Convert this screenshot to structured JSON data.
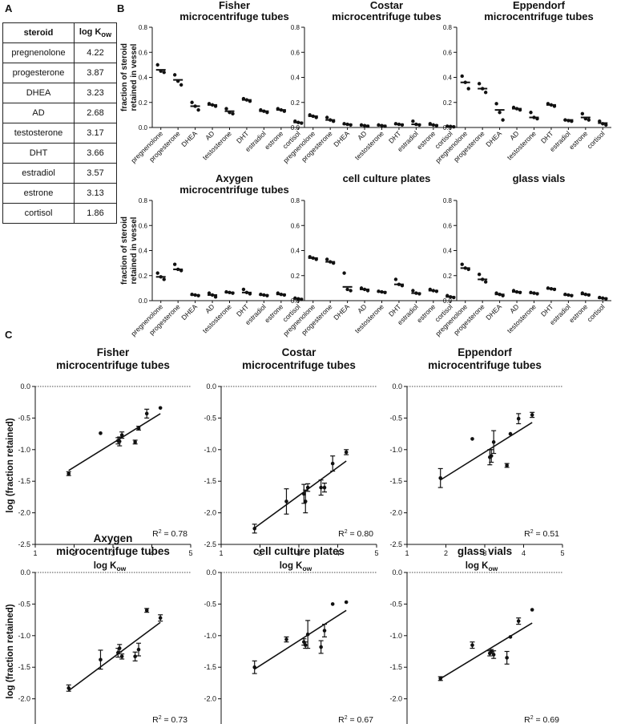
{
  "panels": {
    "a": "A",
    "b": "B",
    "c": "C"
  },
  "table": {
    "headers": [
      "steroid",
      "log K",
      "ow"
    ],
    "rows": [
      {
        "steroid": "pregnenolone",
        "logkow": "4.22"
      },
      {
        "steroid": "progesterone",
        "logkow": "3.87"
      },
      {
        "steroid": "DHEA",
        "logkow": "3.23"
      },
      {
        "steroid": "AD",
        "logkow": "2.68"
      },
      {
        "steroid": "testosterone",
        "logkow": "3.17"
      },
      {
        "steroid": "DHT",
        "logkow": "3.66"
      },
      {
        "steroid": "estradiol",
        "logkow": "3.57"
      },
      {
        "steroid": "estrone",
        "logkow": "3.13"
      },
      {
        "steroid": "cortisol",
        "logkow": "1.86"
      }
    ]
  },
  "chart_data": [
    {
      "panel": "B",
      "type": "scatter",
      "ylabel": [
        "fraction of steroid",
        "retained in vessel"
      ],
      "ylim": [
        0,
        0.8
      ],
      "yticks": [
        "0.0",
        "0.2",
        "0.4",
        "0.6",
        "0.8"
      ],
      "categories": [
        "pregnenolone",
        "progesterone",
        "DHEA",
        "AD",
        "testosterone",
        "DHT",
        "estradiol",
        "estrone",
        "cortisol"
      ],
      "subplots": [
        {
          "title": [
            "Fisher",
            "microcentrifuge tubes"
          ],
          "means": [
            0.46,
            0.38,
            0.17,
            0.18,
            0.13,
            0.22,
            0.13,
            0.14,
            0.04
          ],
          "points": [
            [
              0.5,
              0.45,
              0.44
            ],
            [
              0.42,
              0.37,
              0.34
            ],
            [
              0.2,
              0.17,
              0.14
            ],
            [
              0.19,
              0.18,
              0.17
            ],
            [
              0.15,
              0.12,
              0.11
            ],
            [
              0.23,
              0.22,
              0.21
            ],
            [
              0.14,
              0.13,
              0.12
            ],
            [
              0.15,
              0.14,
              0.13
            ],
            [
              0.05,
              0.04,
              0.035
            ]
          ]
        },
        {
          "title": [
            "Costar",
            "microcentrifuge tubes"
          ],
          "means": [
            0.09,
            0.06,
            0.025,
            0.015,
            0.015,
            0.025,
            0.025,
            0.02,
            0.008
          ],
          "points": [
            [
              0.1,
              0.09,
              0.08
            ],
            [
              0.08,
              0.06,
              0.05
            ],
            [
              0.03,
              0.025,
              0.02
            ],
            [
              0.02,
              0.015,
              0.01
            ],
            [
              0.02,
              0.015,
              0.01
            ],
            [
              0.03,
              0.025,
              0.02
            ],
            [
              0.05,
              0.025,
              0.02
            ],
            [
              0.03,
              0.02,
              0.015
            ],
            [
              0.01,
              0.008,
              0.005
            ]
          ]
        },
        {
          "title": [
            "Eppendorf",
            "microcentrifuge tubes"
          ],
          "means": [
            0.36,
            0.31,
            0.14,
            0.15,
            0.08,
            0.18,
            0.06,
            0.08,
            0.035
          ],
          "points": [
            [
              0.41,
              0.36,
              0.31
            ],
            [
              0.35,
              0.31,
              0.28
            ],
            [
              0.19,
              0.12,
              0.06
            ],
            [
              0.16,
              0.15,
              0.14
            ],
            [
              0.12,
              0.08,
              0.07
            ],
            [
              0.19,
              0.18,
              0.17
            ],
            [
              0.06,
              0.055,
              0.05
            ],
            [
              0.11,
              0.07,
              0.06
            ],
            [
              0.05,
              0.03,
              0.02
            ]
          ]
        },
        {
          "title": [
            "Axygen",
            "microcentrifuge tubes"
          ],
          "means": [
            0.19,
            0.25,
            0.045,
            0.045,
            0.065,
            0.065,
            0.045,
            0.05,
            0.015
          ],
          "points": [
            [
              0.22,
              0.19,
              0.17
            ],
            [
              0.29,
              0.25,
              0.24
            ],
            [
              0.05,
              0.045,
              0.04
            ],
            [
              0.06,
              0.045,
              0.03
            ],
            [
              0.07,
              0.065,
              0.06
            ],
            [
              0.09,
              0.065,
              0.055
            ],
            [
              0.05,
              0.045,
              0.04
            ],
            [
              0.06,
              0.05,
              0.045
            ],
            [
              0.02,
              0.015,
              0.01
            ]
          ]
        },
        {
          "title": [
            "cell culture plates"
          ],
          "means": [
            0.34,
            0.31,
            0.11,
            0.09,
            0.07,
            0.13,
            0.06,
            0.08,
            0.03
          ],
          "points": [
            [
              0.35,
              0.34,
              0.33
            ],
            [
              0.33,
              0.31,
              0.3
            ],
            [
              0.22,
              0.09,
              0.08
            ],
            [
              0.1,
              0.09,
              0.08
            ],
            [
              0.075,
              0.07,
              0.065
            ],
            [
              0.17,
              0.13,
              0.12
            ],
            [
              0.08,
              0.06,
              0.055
            ],
            [
              0.09,
              0.08,
              0.075
            ],
            [
              0.04,
              0.03,
              0.025
            ]
          ]
        },
        {
          "title": [
            "glass vials"
          ],
          "means": [
            0.26,
            0.17,
            0.05,
            0.07,
            0.06,
            0.095,
            0.045,
            0.05,
            0.02
          ],
          "points": [
            [
              0.29,
              0.26,
              0.25
            ],
            [
              0.21,
              0.17,
              0.15
            ],
            [
              0.06,
              0.05,
              0.04
            ],
            [
              0.08,
              0.07,
              0.065
            ],
            [
              0.065,
              0.06,
              0.055
            ],
            [
              0.1,
              0.095,
              0.09
            ],
            [
              0.05,
              0.045,
              0.04
            ],
            [
              0.06,
              0.05,
              0.045
            ],
            [
              0.025,
              0.02,
              0.015
            ]
          ]
        }
      ]
    },
    {
      "panel": "C",
      "type": "scatter",
      "xlabel": "log K",
      "xlabel_sub": "ow",
      "ylabel": "log (fraction retained)",
      "xlim": [
        1,
        5
      ],
      "ylim": [
        -2.5,
        0.0
      ],
      "xticks": [
        "1",
        "2",
        "3",
        "4",
        "5"
      ],
      "yticks": [
        "0.0",
        "-0.5",
        "-1.0",
        "-1.5",
        "-2.0",
        "-2.5"
      ],
      "x": [
        4.22,
        3.87,
        3.23,
        2.68,
        3.17,
        3.66,
        3.57,
        3.13,
        1.86
      ],
      "subplots": [
        {
          "title": [
            "Fisher",
            "microcentrifuge tubes"
          ],
          "r2_label": "R",
          "r2_value": " = 0.78",
          "y": [
            -0.34,
            -0.43,
            -0.77,
            -0.74,
            -0.87,
            -0.66,
            -0.88,
            -0.86,
            -1.38
          ],
          "err": [
            0.02,
            0.07,
            0.05,
            0.02,
            0.07,
            0.03,
            0.03,
            0.05,
            0.03
          ],
          "fit": [
            [
              1.86,
              -1.33
            ],
            [
              4.22,
              -0.43
            ]
          ]
        },
        {
          "title": [
            "Costar",
            "microcentrifuge tubes"
          ],
          "r2_label": "R",
          "r2_value": " = 0.80",
          "y": [
            -1.04,
            -1.22,
            -1.6,
            -1.82,
            -1.82,
            -1.6,
            -1.6,
            -1.7,
            -2.25
          ],
          "err": [
            0.04,
            0.12,
            0.06,
            0.2,
            0.18,
            0.07,
            0.12,
            0.15,
            0.07
          ],
          "fit": [
            [
              1.86,
              -2.24
            ],
            [
              4.22,
              -1.18
            ]
          ]
        },
        {
          "title": [
            "Eppendorf",
            "microcentrifuge tubes"
          ],
          "r2_label": "R",
          "r2_value": " = 0.51",
          "y": [
            -0.45,
            -0.51,
            -0.88,
            -0.83,
            -1.1,
            -0.75,
            -1.25,
            -1.12,
            -1.45
          ],
          "err": [
            0.04,
            0.08,
            0.18,
            0.02,
            0.1,
            0.02,
            0.03,
            0.12,
            0.15
          ],
          "fit": [
            [
              1.86,
              -1.48
            ],
            [
              4.22,
              -0.57
            ]
          ]
        },
        {
          "title": [
            "Axygen",
            "microcentrifuge tubes"
          ],
          "r2_label": "R",
          "r2_value": " = 0.73",
          "y": [
            -0.72,
            -0.6,
            -1.33,
            -1.38,
            -1.2,
            -1.22,
            -1.33,
            -1.27,
            -1.83
          ],
          "err": [
            0.05,
            0.03,
            0.04,
            0.15,
            0.06,
            0.1,
            0.07,
            0.07,
            0.05
          ],
          "fit": [
            [
              1.86,
              -1.87
            ],
            [
              4.22,
              -0.79
            ]
          ]
        },
        {
          "title": [
            "cell culture plates"
          ],
          "r2_label": "R",
          "r2_value": " = 0.67",
          "y": [
            -0.47,
            -0.5,
            -0.98,
            -1.06,
            -1.15,
            -0.92,
            -1.18,
            -1.1,
            -1.5
          ],
          "err": [
            0.01,
            0.01,
            0.22,
            0.04,
            0.05,
            0.1,
            0.1,
            0.05,
            0.1
          ],
          "fit": [
            [
              1.86,
              -1.53
            ],
            [
              4.22,
              -0.6
            ]
          ]
        },
        {
          "title": [
            "glass vials"
          ],
          "r2_label": "R",
          "r2_value": " = 0.69",
          "y": [
            -0.59,
            -0.77,
            -1.3,
            -1.15,
            -1.25,
            -1.02,
            -1.35,
            -1.28,
            -1.68
          ],
          "err": [
            0.01,
            0.05,
            0.06,
            0.05,
            0.03,
            0.02,
            0.1,
            0.04,
            0.03
          ],
          "fit": [
            [
              1.86,
              -1.68
            ],
            [
              4.22,
              -0.8
            ]
          ]
        }
      ]
    }
  ]
}
